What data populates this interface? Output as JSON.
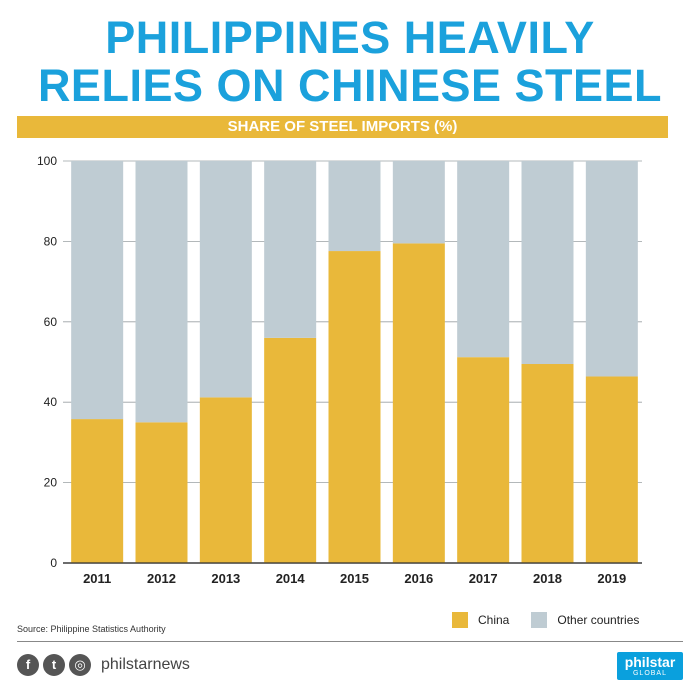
{
  "header": {
    "title_line1": "PHILIPPINES HEAVILY",
    "title_line2": "RELIES ON CHINESE STEEL",
    "subtitle": "SHARE OF STEEL IMPORTS (%)"
  },
  "chart_data": {
    "type": "bar",
    "stacked": true,
    "categories": [
      "2011",
      "2012",
      "2013",
      "2014",
      "2015",
      "2016",
      "2017",
      "2018",
      "2019"
    ],
    "series": [
      {
        "name": "China",
        "values": [
          35.8,
          35.0,
          41.2,
          56.0,
          77.6,
          79.5,
          51.2,
          49.5,
          46.4
        ],
        "color": "#e9b83a"
      },
      {
        "name": "Other countries",
        "values": [
          64.2,
          65.0,
          58.8,
          44.0,
          22.4,
          20.5,
          48.8,
          50.5,
          53.6
        ],
        "color": "#bfccd3"
      }
    ],
    "ylim": [
      0,
      100
    ],
    "yticks": [
      0,
      20,
      40,
      60,
      80,
      100
    ],
    "grid": true,
    "legend_position": "bottom-right"
  },
  "source": "Source: Philippine Statistics Authority",
  "footer": {
    "social_icons": [
      "facebook-icon",
      "twitter-icon",
      "instagram-icon"
    ],
    "social_glyphs": [
      "f",
      "t",
      "◎"
    ],
    "handle": "philstarnews",
    "logo_main": "philstar",
    "logo_sub": "GLOBAL"
  }
}
